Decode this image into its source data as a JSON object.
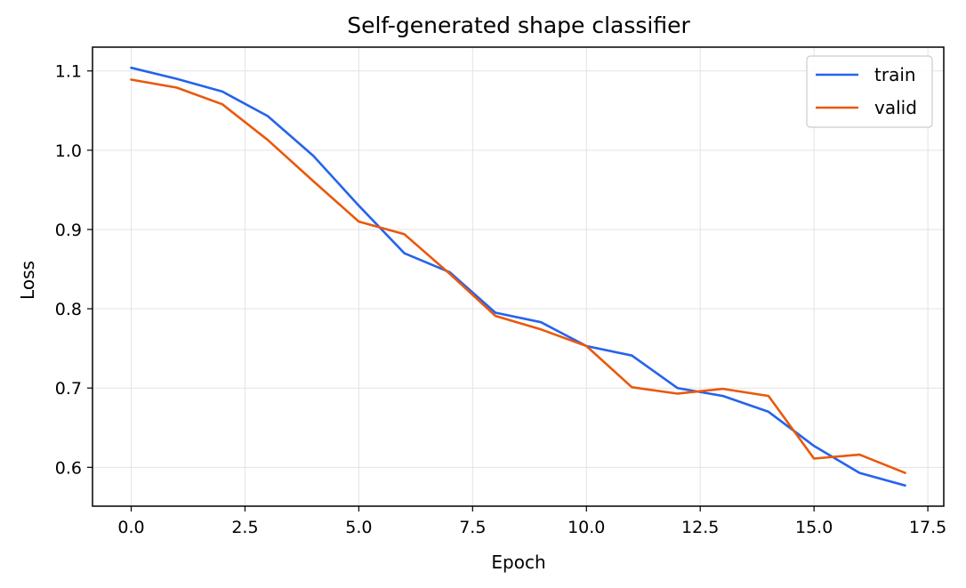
{
  "chart_data": {
    "type": "line",
    "title": "Self-generated shape classifier",
    "xlabel": "Epoch",
    "ylabel": "Loss",
    "xlim": [
      -0.85,
      17.85
    ],
    "ylim": [
      0.551,
      1.13
    ],
    "xticks": [
      0.0,
      2.5,
      5.0,
      7.5,
      10.0,
      12.5,
      15.0,
      17.5
    ],
    "xtick_labels": [
      "0.0",
      "2.5",
      "5.0",
      "7.5",
      "10.0",
      "12.5",
      "15.0",
      "17.5"
    ],
    "yticks": [
      0.6,
      0.7,
      0.8,
      0.9,
      1.0,
      1.1
    ],
    "ytick_labels": [
      "0.6",
      "0.7",
      "0.8",
      "0.9",
      "1.0",
      "1.1"
    ],
    "grid": true,
    "legend_position": "top-right",
    "x": [
      0,
      1,
      2,
      3,
      4,
      5,
      6,
      7,
      8,
      9,
      10,
      11,
      12,
      13,
      14,
      15,
      16,
      17
    ],
    "series": [
      {
        "name": "train",
        "color": "#2563eb",
        "values": [
          1.104,
          1.09,
          1.074,
          1.043,
          0.993,
          0.93,
          0.87,
          0.846,
          0.795,
          0.783,
          0.753,
          0.741,
          0.7,
          0.69,
          0.67,
          0.627,
          0.593,
          0.577
        ]
      },
      {
        "name": "valid",
        "color": "#ea580c",
        "values": [
          1.089,
          1.079,
          1.058,
          1.013,
          0.961,
          0.91,
          0.894,
          0.844,
          0.791,
          0.774,
          0.753,
          0.701,
          0.693,
          0.699,
          0.69,
          0.611,
          0.616,
          0.593
        ]
      }
    ]
  }
}
